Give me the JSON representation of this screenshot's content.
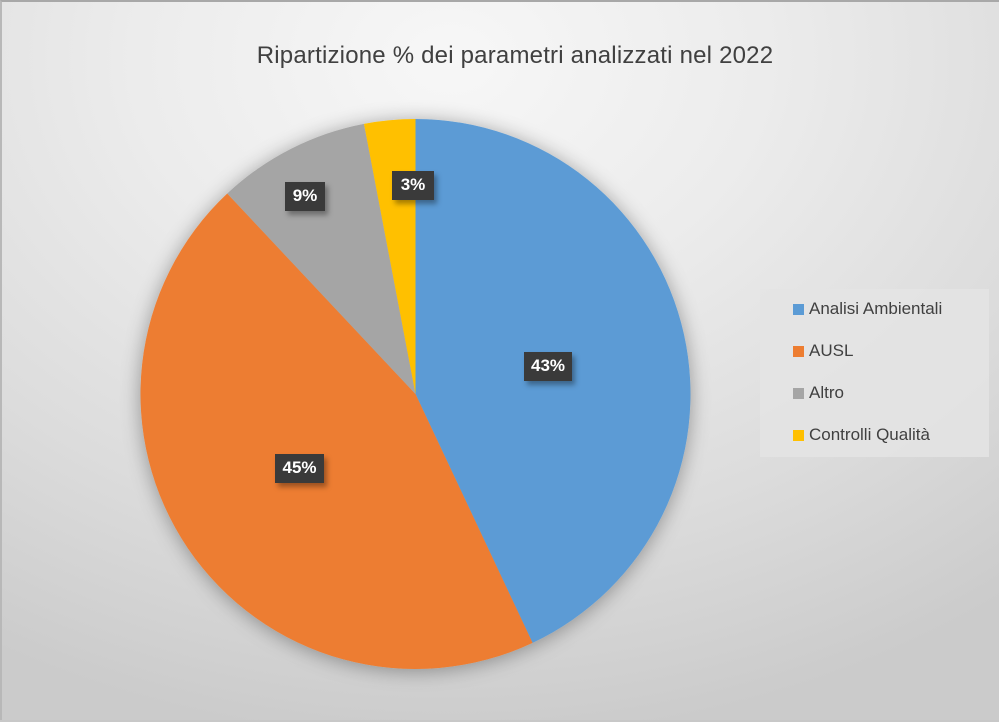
{
  "chart_data": {
    "type": "pie",
    "title": "Ripartizione % dei parametri analizzati nel 2022",
    "categories": [
      "Analisi Ambientali",
      "AUSL",
      "Altro",
      "Controlli Qualità"
    ],
    "values": [
      43,
      45,
      9,
      3
    ],
    "labels": [
      "43%",
      "45%",
      "9%",
      "3%"
    ],
    "colors": [
      "#5B9BD5",
      "#ED7D31",
      "#A5A5A5",
      "#FFC000"
    ],
    "legend_position": "right",
    "start_angle_deg": 0,
    "direction": "clockwise"
  },
  "title": "Ripartizione % dei parametri analizzati nel 2022",
  "labels": {
    "analisi": "43%",
    "ausl": "45%",
    "altro": "9%",
    "controlli": "3%"
  },
  "legend": {
    "items": [
      {
        "label": "Analisi Ambientali",
        "color": "#5B9BD5"
      },
      {
        "label": "AUSL",
        "color": "#ED7D31"
      },
      {
        "label": "Altro",
        "color": "#A5A5A5"
      },
      {
        "label": "Controlli Qualità",
        "color": "#FFC000"
      }
    ]
  }
}
